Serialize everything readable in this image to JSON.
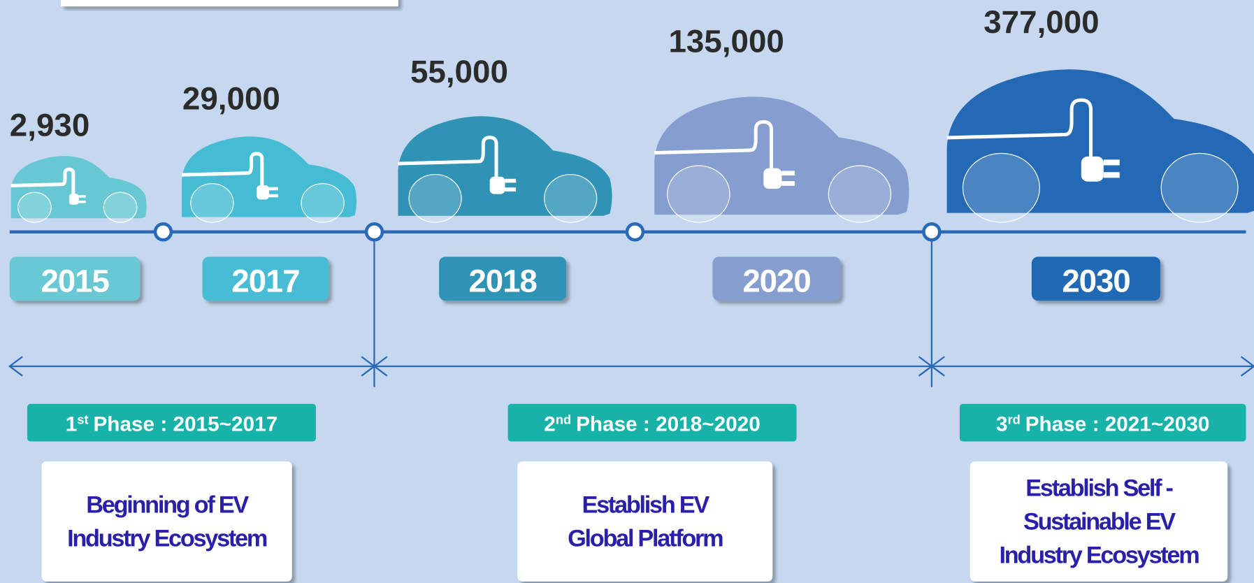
{
  "items": [
    {
      "value": "2,930",
      "year": "2015",
      "color": "#67c8d4"
    },
    {
      "value": "29,000",
      "year": "2017",
      "color": "#46bcd4"
    },
    {
      "value": "55,000",
      "year": "2018",
      "color": "#2f93b5"
    },
    {
      "value": "135,000",
      "year": "2020",
      "color": "#869dd0"
    },
    {
      "value": "377,000",
      "year": "2030",
      "color": "#2469b5"
    }
  ],
  "phases": [
    {
      "ordinal": "1",
      "suffix": "st",
      "text": "Phase : 2015~2017",
      "description": [
        "Beginning of EV",
        "Industry Ecosystem"
      ]
    },
    {
      "ordinal": "2",
      "suffix": "nd",
      "text": "Phase : 2018~2020",
      "description": [
        "Establish EV",
        "Global Platform"
      ]
    },
    {
      "ordinal": "3",
      "suffix": "rd",
      "text": "Phase : 2021~2030",
      "description": [
        "Establish Self -",
        "Sustainable EV",
        "Industry Ecosystem"
      ]
    }
  ]
}
